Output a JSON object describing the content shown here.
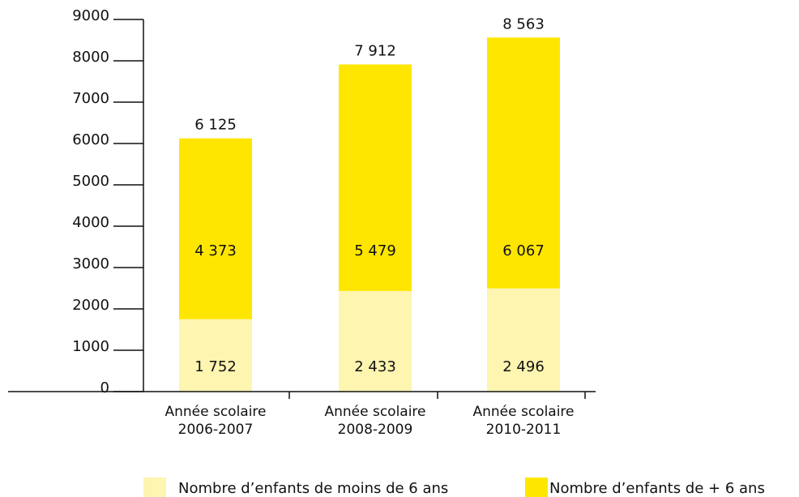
{
  "chart_data": {
    "type": "stacked_bar",
    "categories": [
      "Année scolaire 2006-2007",
      "Année scolaire 2008-2009",
      "Année scolaire 2010-2011"
    ],
    "series": [
      {
        "name": "Nombre d’enfants de moins de 6 ans",
        "color": "#fdf5b0",
        "values": [
          1752,
          2433,
          2496
        ],
        "value_labels": [
          "1 752",
          "2 433",
          "2 496"
        ]
      },
      {
        "name": "Nombre d’enfants de + 6 ans",
        "color": "#ffe600",
        "values": [
          4373,
          5479,
          6067
        ],
        "value_labels": [
          "4 373",
          "5 479",
          "6 067"
        ]
      }
    ],
    "total_labels": [
      "6 125",
      "7 912",
      "8 563"
    ],
    "ylim": [
      0,
      9000
    ],
    "yticks": [
      0,
      1000,
      2000,
      3000,
      4000,
      5000,
      6000,
      7000,
      8000,
      9000
    ],
    "legend": "bottom"
  }
}
